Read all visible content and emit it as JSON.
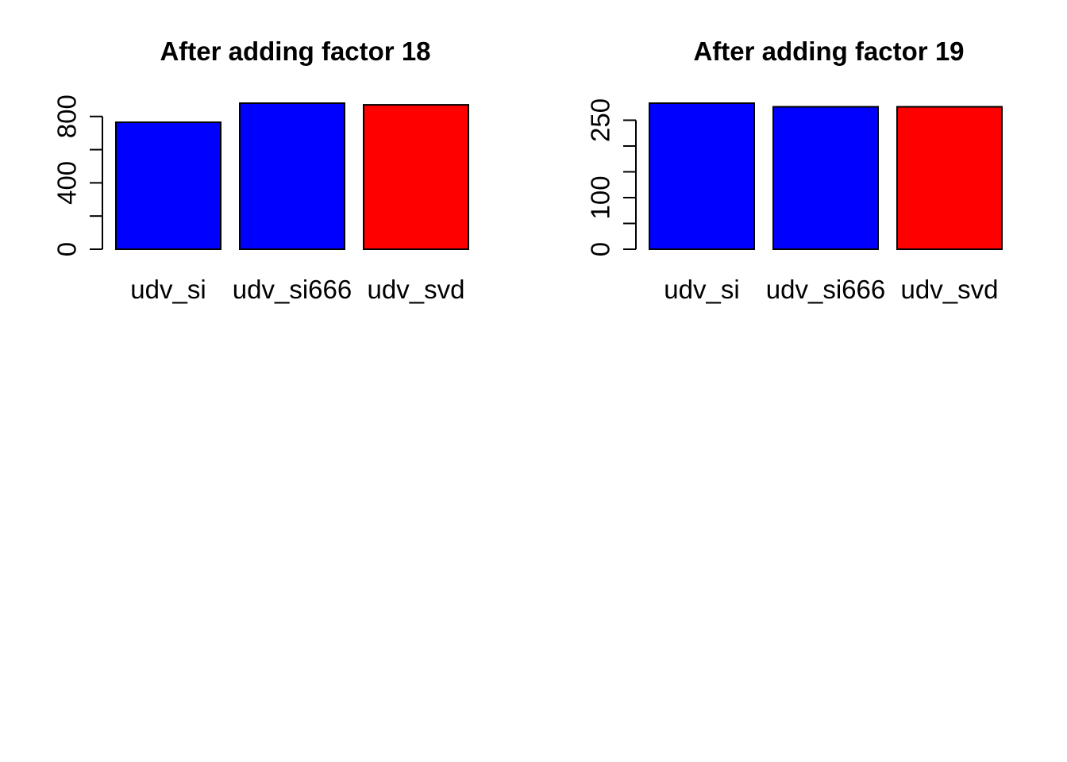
{
  "page": {
    "background_color": "#FFFFFF",
    "layout_note": "two base-R style barplots side by side in top half, bottom half blank"
  },
  "colors": {
    "bar_blue": "#0000FF",
    "bar_red": "#FF0000",
    "axis_black": "#000000"
  },
  "chart_data": [
    {
      "type": "bar",
      "title": "After adding factor 18",
      "categories": [
        "udv_si",
        "udv_si666",
        "udv_svd"
      ],
      "values": [
        765,
        880,
        870
      ],
      "bar_colors": [
        "#0000FF",
        "#0000FF",
        "#FF0000"
      ],
      "bar_edge_color": "#000000",
      "xlabel": "",
      "ylabel": "",
      "ylim": [
        0,
        880
      ],
      "yaxis": {
        "ticks": [
          0,
          200,
          400,
          600,
          800
        ],
        "labeled_ticks": [
          0,
          400,
          800
        ]
      },
      "grid": false,
      "legend_position": "none"
    },
    {
      "type": "bar",
      "title": "After adding factor 19",
      "categories": [
        "udv_si",
        "udv_si666",
        "udv_svd"
      ],
      "values": [
        283,
        276,
        276
      ],
      "bar_colors": [
        "#0000FF",
        "#0000FF",
        "#FF0000"
      ],
      "bar_edge_color": "#000000",
      "xlabel": "",
      "ylabel": "",
      "ylim": [
        0,
        283
      ],
      "yaxis": {
        "ticks": [
          0,
          50,
          100,
          150,
          200,
          250
        ],
        "labeled_ticks": [
          0,
          100,
          250
        ]
      },
      "grid": false,
      "legend_position": "none"
    }
  ]
}
